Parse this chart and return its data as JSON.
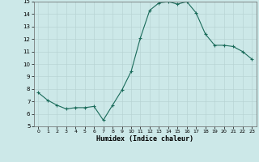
{
  "x": [
    0,
    1,
    2,
    3,
    4,
    5,
    6,
    7,
    8,
    9,
    10,
    11,
    12,
    13,
    14,
    15,
    16,
    17,
    18,
    19,
    20,
    21,
    22,
    23
  ],
  "y": [
    7.7,
    7.1,
    6.7,
    6.4,
    6.5,
    6.5,
    6.6,
    5.5,
    6.7,
    7.9,
    9.4,
    12.1,
    14.3,
    14.9,
    15.0,
    14.8,
    15.0,
    14.1,
    12.4,
    11.5,
    11.5,
    11.4,
    11.0,
    10.4
  ],
  "xlabel": "Humidex (Indice chaleur)",
  "xlim": [
    -0.5,
    23.5
  ],
  "ylim": [
    5,
    15
  ],
  "yticks": [
    5,
    6,
    7,
    8,
    9,
    10,
    11,
    12,
    13,
    14,
    15
  ],
  "xticks": [
    0,
    1,
    2,
    3,
    4,
    5,
    6,
    7,
    8,
    9,
    10,
    11,
    12,
    13,
    14,
    15,
    16,
    17,
    18,
    19,
    20,
    21,
    22,
    23
  ],
  "line_color": "#1a6b5a",
  "marker": "+",
  "bg_color": "#cce8e8",
  "grid_color": "#b8d4d4"
}
